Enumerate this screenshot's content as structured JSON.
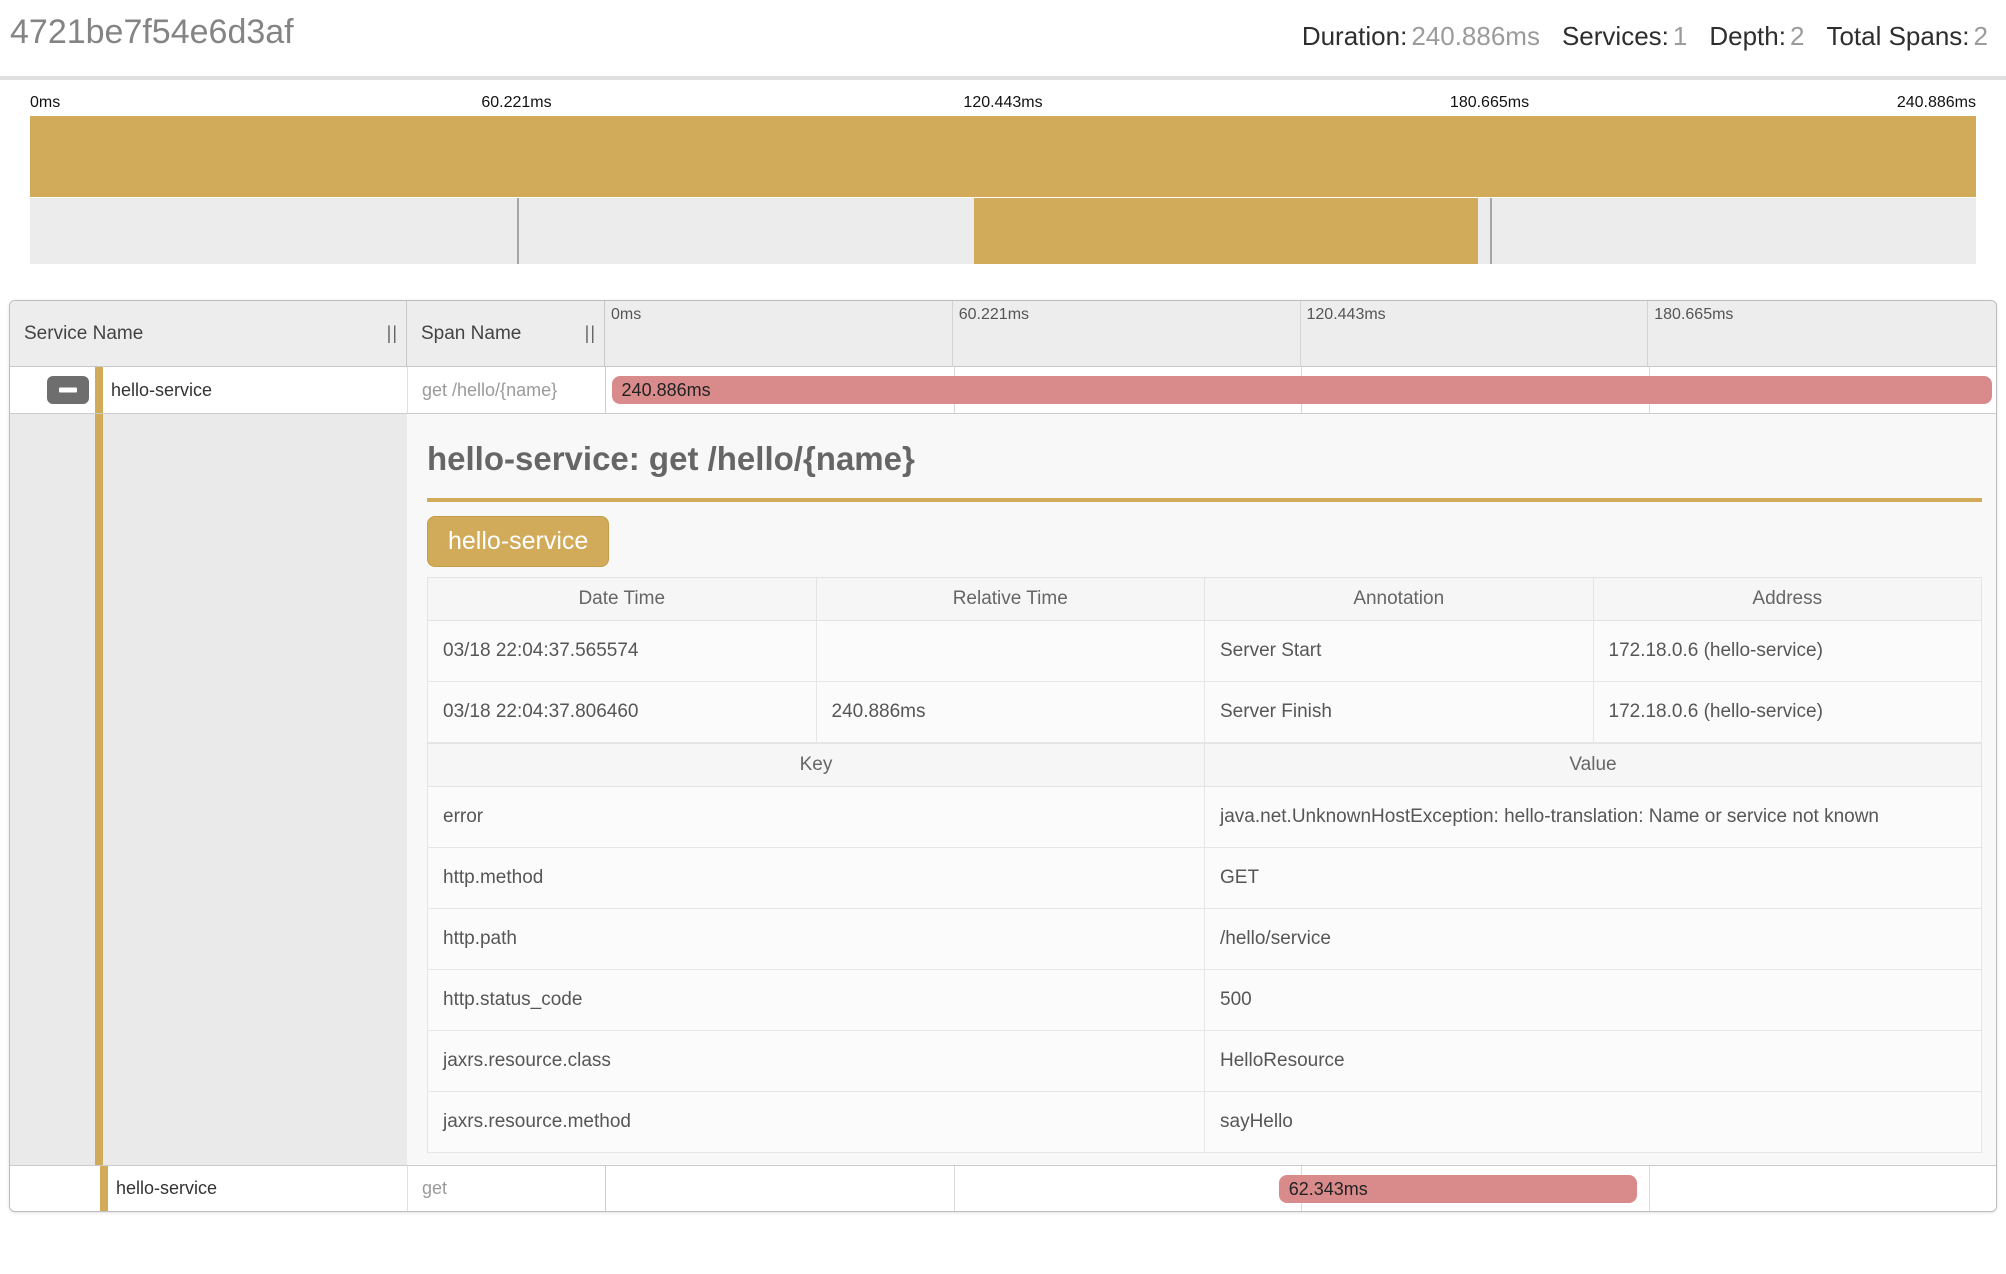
{
  "header": {
    "trace_id": "4721be7f54e6d3af",
    "stats": [
      {
        "label": "Duration:",
        "value": "240.886ms"
      },
      {
        "label": "Services:",
        "value": "1"
      },
      {
        "label": "Depth:",
        "value": "2"
      },
      {
        "label": "Total Spans:",
        "value": "2"
      }
    ]
  },
  "minimap": {
    "ticks": [
      "0ms",
      "60.221ms",
      "120.443ms",
      "180.665ms",
      "240.886ms"
    ],
    "root_bar": {
      "left_pct": 0,
      "width_pct": 100
    },
    "child_bar": {
      "left_pct": 48.5,
      "width_pct": 25.9
    }
  },
  "span_table": {
    "service_col": "Service Name",
    "span_col": "Span Name",
    "resize_grip": "||",
    "time_ticks": [
      "0ms",
      "60.221ms",
      "120.443ms",
      "180.665ms"
    ],
    "rows": [
      {
        "service": "hello-service",
        "span": "get /hello/{name}",
        "duration": "240.886ms",
        "bar": {
          "left_pct": 0.4,
          "width_pct": 99.3
        }
      },
      {
        "service": "hello-service",
        "span": "get",
        "duration": "62.343ms",
        "bar": {
          "left_pct": 48.4,
          "width_pct": 25.8
        }
      }
    ]
  },
  "detail": {
    "title": "hello-service: get /hello/{name}",
    "service_badge": "hello-service",
    "annotations": {
      "headers": [
        "Date Time",
        "Relative Time",
        "Annotation",
        "Address"
      ],
      "rows": [
        [
          "03/18 22:04:37.565574",
          "",
          "Server Start",
          "172.18.0.6 (hello-service)"
        ],
        [
          "03/18 22:04:37.806460",
          "240.886ms",
          "Server Finish",
          "172.18.0.6 (hello-service)"
        ]
      ]
    },
    "tags": {
      "headers": [
        "Key",
        "Value"
      ],
      "rows": [
        [
          "error",
          "java.net.UnknownHostException: hello-translation: Name or service not known"
        ],
        [
          "http.method",
          "GET"
        ],
        [
          "http.path",
          "/hello/service"
        ],
        [
          "http.status_code",
          "500"
        ],
        [
          "jaxrs.resource.class",
          "HelloResource"
        ],
        [
          "jaxrs.resource.method",
          "sayHello"
        ]
      ]
    }
  },
  "colors": {
    "gold": "#d1ab5a",
    "red": "#d98b8b"
  }
}
